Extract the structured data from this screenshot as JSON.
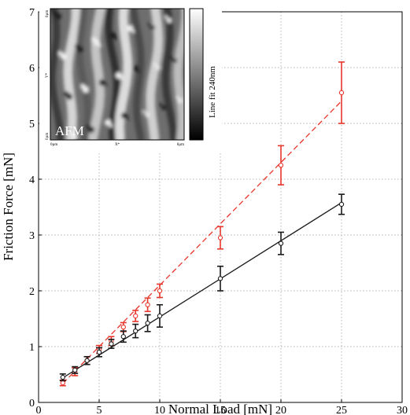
{
  "chart_data": {
    "type": "scatter",
    "title": "",
    "xlabel": "Normal Load [mN]",
    "ylabel": "Friction Force [mN]",
    "xlim": [
      0,
      30
    ],
    "ylim": [
      0,
      7
    ],
    "xticks": [
      0,
      5,
      10,
      15,
      20,
      25,
      30
    ],
    "yticks": [
      0,
      1,
      2,
      3,
      4,
      5,
      6,
      7
    ],
    "grid": true,
    "series": [
      {
        "color": "#e8352a",
        "marker": "open-circle",
        "x": [
          2,
          3,
          4,
          5,
          6,
          7,
          8,
          9,
          10,
          15,
          20,
          25
        ],
        "y": [
          0.35,
          0.55,
          0.75,
          0.95,
          1.1,
          1.35,
          1.55,
          1.75,
          2.0,
          2.95,
          4.25,
          5.55
        ],
        "err": [
          0.05,
          0.07,
          0.07,
          0.07,
          0.08,
          0.08,
          0.1,
          0.12,
          0.12,
          0.2,
          0.35,
          0.55
        ],
        "fit": {
          "x": [
            2,
            25
          ],
          "y": [
            0.34,
            5.4
          ],
          "style": "dashed"
        }
      },
      {
        "color": "#1a1a1a",
        "marker": "open-circle",
        "x": [
          2,
          3,
          4,
          5,
          6,
          7,
          8,
          9,
          10,
          15,
          20,
          25
        ],
        "y": [
          0.45,
          0.58,
          0.75,
          0.9,
          1.05,
          1.18,
          1.28,
          1.42,
          1.55,
          2.22,
          2.85,
          3.55
        ],
        "err": [
          0.06,
          0.06,
          0.07,
          0.08,
          0.08,
          0.1,
          0.12,
          0.15,
          0.2,
          0.22,
          0.2,
          0.18
        ],
        "fit": {
          "x": [
            2,
            25
          ],
          "y": [
            0.44,
            3.58
          ],
          "style": "solid"
        }
      }
    ]
  },
  "inset": {
    "image_label": "AFM",
    "y_top_label": "6µm",
    "y_mid_label": "Y*",
    "y_bottom_label": "0µm",
    "x_left_label": "0µm",
    "x_mid_label": "X*",
    "x_right_label": "6µm",
    "colorbar_label": "Line fit 240nm"
  }
}
